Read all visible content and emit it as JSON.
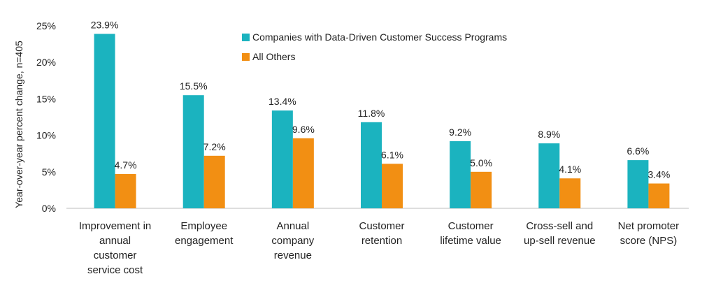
{
  "chart_data": {
    "type": "bar",
    "title": "",
    "xlabel": "",
    "ylabel": "Year-over-year percent change, n=405",
    "ylim": [
      0,
      25
    ],
    "yticks": [
      "0%",
      "5%",
      "10%",
      "15%",
      "20%",
      "25%"
    ],
    "ytick_values": [
      0,
      5,
      10,
      15,
      20,
      25
    ],
    "grid": false,
    "legend_position": "top-center",
    "categories": [
      [
        "Improvement in",
        "annual",
        "customer",
        "service cost"
      ],
      [
        "Employee",
        "engagement"
      ],
      [
        "Annual",
        "company",
        "revenue"
      ],
      [
        "Customer",
        "retention"
      ],
      [
        "Customer",
        "lifetime value"
      ],
      [
        "Cross-sell and",
        "up-sell revenue"
      ],
      [
        "Net promoter",
        "score (NPS)"
      ]
    ],
    "series": [
      {
        "name": "Companies with Data-Driven Customer Success Programs",
        "color": "#1bb3bf",
        "values": [
          23.9,
          15.5,
          13.4,
          11.8,
          9.2,
          8.9,
          6.6
        ],
        "labels": [
          "23.9%",
          "15.5%",
          "13.4%",
          "11.8%",
          "9.2%",
          "8.9%",
          "6.6%"
        ]
      },
      {
        "name": "All Others",
        "color": "#f28f13",
        "values": [
          4.7,
          7.2,
          9.6,
          6.1,
          5.0,
          4.1,
          3.4
        ],
        "labels": [
          "4.7%",
          "7.2%",
          "9.6%",
          "6.1%",
          "5.0%",
          "4.1%",
          "3.4%"
        ]
      }
    ]
  }
}
